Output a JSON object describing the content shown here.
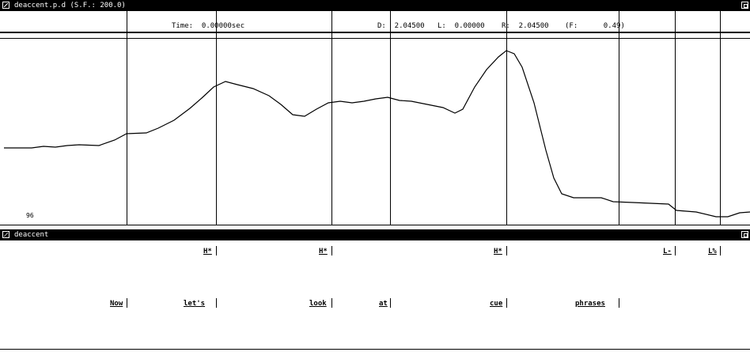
{
  "window1": {
    "title": "deaccent.p.d (S.F.: 200.0)",
    "icons": [
      "window-menu-icon",
      "window-resize-icon"
    ]
  },
  "info": {
    "time": "Time:  0.00000sec",
    "d": "D:  2.04500",
    "l": "L:  0.00000",
    "r": "R:  2.04500",
    "f": "(F:      0.49)"
  },
  "plot": {
    "y_floor_label": "96"
  },
  "window2": {
    "title": "deaccent",
    "icons": [
      "window-menu-icon",
      "window-resize-icon"
    ]
  },
  "tones": [
    {
      "label": "H*"
    },
    {
      "label": "H*"
    },
    {
      "label": "H*"
    },
    {
      "label": "L-"
    },
    {
      "label": "L%"
    }
  ],
  "words": [
    {
      "label": "Now"
    },
    {
      "label": "let's"
    },
    {
      "label": "look"
    },
    {
      "label": "at"
    },
    {
      "label": "cue"
    },
    {
      "label": "phrases"
    }
  ]
}
